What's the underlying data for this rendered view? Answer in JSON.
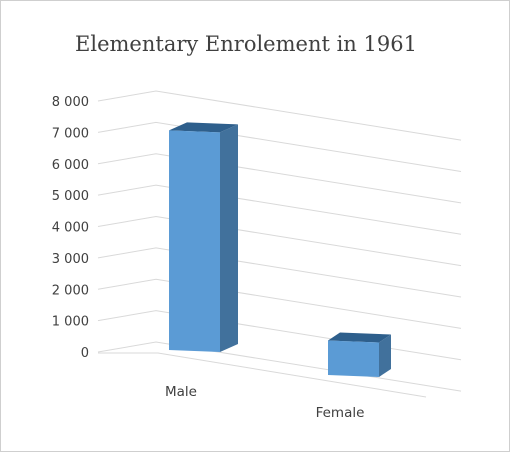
{
  "chart_data": {
    "type": "bar",
    "title": "Elementary Enrolement in 1961",
    "categories": [
      "Male",
      "Female"
    ],
    "values": [
      7000,
      1100
    ],
    "ylim": [
      0,
      8000
    ],
    "yticks": [
      0,
      1000,
      2000,
      3000,
      4000,
      5000,
      6000,
      7000,
      8000
    ],
    "ytick_labels": [
      "0",
      "1 000",
      "2 000",
      "3 000",
      "4 000",
      "5 000",
      "6 000",
      "7 000",
      "8 000"
    ],
    "grid": true,
    "legend": "none",
    "style": "3d-column",
    "colors": {
      "bar_front": "#5b9bd5",
      "bar_side": "#41719c",
      "bar_top": "#2e5f8c",
      "grid": "#d9d9d9",
      "text": "#404040"
    }
  }
}
